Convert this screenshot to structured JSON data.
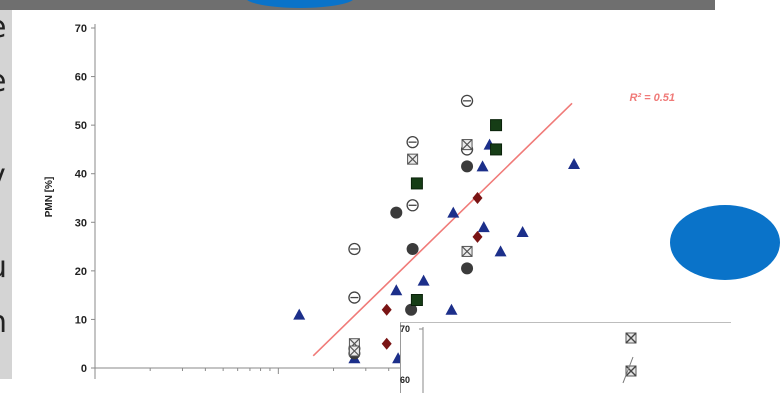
{
  "slide_text_fragments": [
    "e",
    "e",
    "v",
    "u",
    "n"
  ],
  "inset": {
    "tick_labels": [
      "70",
      "60"
    ]
  },
  "chart_data": {
    "type": "scatter",
    "ylabel": "PMN [%]",
    "ylim": [
      0,
      70
    ],
    "yticks": [
      0,
      10,
      20,
      30,
      40,
      50,
      60,
      70
    ],
    "x_scale": "log",
    "xlim": [
      0.1,
      100
    ],
    "grid": false,
    "trendline": {
      "label": "R² = 0.51",
      "color": "#f07a78",
      "from": [
        1.55,
        2.5
      ],
      "to": [
        40,
        54.5
      ]
    },
    "series": [
      {
        "marker": "triangle",
        "color": "#1c2f8a",
        "points": [
          [
            1.3,
            11
          ],
          [
            2.6,
            2
          ],
          [
            4.4,
            16
          ],
          [
            4.5,
            2
          ],
          [
            6.2,
            18
          ],
          [
            8.8,
            12
          ],
          [
            9.0,
            32
          ],
          [
            13,
            41.5
          ],
          [
            13.2,
            29
          ],
          [
            14.2,
            46
          ],
          [
            16.3,
            24
          ],
          [
            21.5,
            28
          ],
          [
            41,
            42
          ]
        ]
      },
      {
        "marker": "circle_dark",
        "color": "#3b3b3b",
        "points": [
          [
            2.6,
            3
          ],
          [
            2.6,
            4
          ],
          [
            4.4,
            32
          ],
          [
            5.3,
            12
          ],
          [
            5.4,
            24.5
          ],
          [
            10.7,
            41.5
          ],
          [
            10.7,
            20.5
          ]
        ]
      },
      {
        "marker": "circle_bar",
        "color": "#444444",
        "points": [
          [
            2.6,
            24.5
          ],
          [
            2.6,
            14.5
          ],
          [
            5.4,
            46.5
          ],
          [
            5.4,
            33.5
          ],
          [
            10.7,
            55
          ],
          [
            10.7,
            45
          ]
        ]
      },
      {
        "marker": "square_x",
        "color": "#555555",
        "points": [
          [
            2.6,
            5
          ],
          [
            2.6,
            3.5
          ],
          [
            5.4,
            43
          ],
          [
            10.7,
            46
          ],
          [
            10.7,
            24
          ]
        ]
      },
      {
        "marker": "square",
        "color": "#163d16",
        "points": [
          [
            5.7,
            38
          ],
          [
            5.7,
            14
          ],
          [
            15.4,
            50
          ],
          [
            15.4,
            45
          ]
        ]
      },
      {
        "marker": "diamond",
        "color": "#7a1414",
        "points": [
          [
            3.9,
            12
          ],
          [
            3.9,
            5
          ],
          [
            12.2,
            35
          ],
          [
            12.2,
            27
          ]
        ]
      }
    ]
  }
}
